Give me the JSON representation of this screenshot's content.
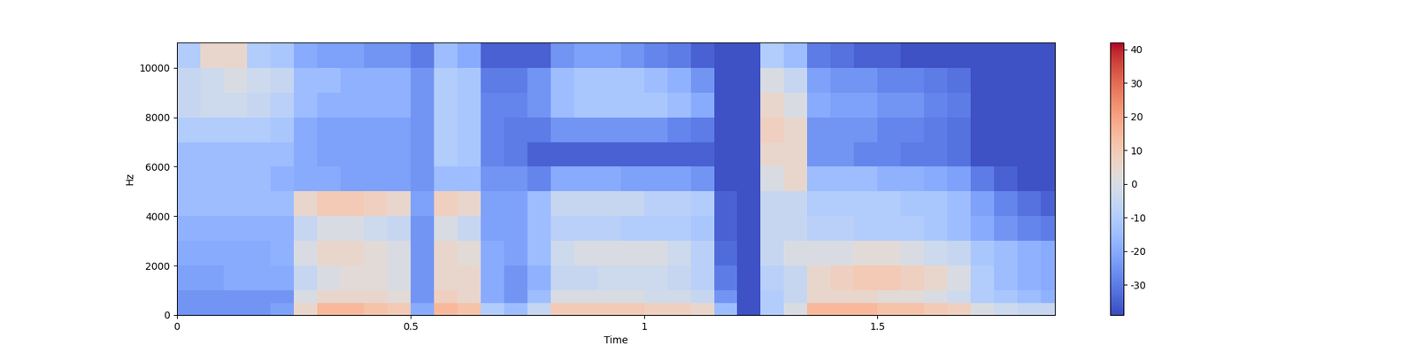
{
  "chart_data": {
    "type": "heatmap",
    "x_label": "Time",
    "y_label": "Hz",
    "xlim": [
      0,
      1.88
    ],
    "xticks": [
      0,
      0.5,
      1,
      1.5
    ],
    "ylim": [
      0,
      11025
    ],
    "yticks": [
      0,
      2000,
      4000,
      6000,
      8000,
      10000
    ],
    "x_edges": [
      0,
      0.05,
      0.1,
      0.15,
      0.2,
      0.25,
      0.3,
      0.35,
      0.4,
      0.45,
      0.5,
      0.55,
      0.6,
      0.65,
      0.7,
      0.75,
      0.8,
      0.85,
      0.9,
      0.95,
      1.0,
      1.05,
      1.1,
      1.15,
      1.2,
      1.25,
      1.3,
      1.35,
      1.4,
      1.45,
      1.5,
      1.55,
      1.6,
      1.65,
      1.7,
      1.75,
      1.8,
      1.85,
      1.9
    ],
    "y_edges": [
      0,
      500,
      1000,
      2000,
      3000,
      4000,
      5000,
      6000,
      7000,
      8000,
      9000,
      10000,
      11025
    ],
    "cells": [
      [
        -25,
        -25,
        -25,
        -25,
        -22,
        5,
        15,
        15,
        12,
        10,
        -20,
        15,
        12,
        -10,
        -15,
        -5,
        10,
        10,
        10,
        10,
        8,
        8,
        5,
        -15,
        -38,
        -10,
        0,
        15,
        15,
        15,
        12,
        12,
        10,
        8,
        0,
        -3,
        -5,
        -5
      ],
      [
        -25,
        -25,
        -25,
        -25,
        -25,
        0,
        5,
        5,
        5,
        3,
        -25,
        8,
        5,
        -20,
        -25,
        -15,
        0,
        0,
        0,
        0,
        -2,
        -2,
        -5,
        -25,
        -38,
        -10,
        -5,
        5,
        5,
        5,
        3,
        3,
        0,
        -3,
        -10,
        -12,
        -15,
        -18
      ],
      [
        -22,
        -22,
        -20,
        -20,
        -20,
        -5,
        0,
        3,
        3,
        0,
        -25,
        5,
        5,
        -20,
        -25,
        -18,
        -5,
        -5,
        -3,
        -3,
        -3,
        -5,
        -8,
        -30,
        -38,
        -8,
        -5,
        5,
        8,
        10,
        10,
        8,
        5,
        0,
        -10,
        -15,
        -18,
        -20
      ],
      [
        -20,
        -20,
        -20,
        -20,
        -18,
        0,
        5,
        5,
        3,
        0,
        -25,
        5,
        3,
        -20,
        -22,
        -15,
        -3,
        0,
        0,
        0,
        0,
        -3,
        -8,
        -33,
        -38,
        -5,
        0,
        0,
        0,
        3,
        3,
        0,
        -3,
        -5,
        -12,
        -15,
        -18,
        -20
      ],
      [
        -18,
        -18,
        -18,
        -18,
        -18,
        -5,
        0,
        0,
        -3,
        -5,
        -25,
        0,
        -5,
        -22,
        -22,
        -15,
        -8,
        -8,
        -8,
        -10,
        -10,
        -10,
        -12,
        -35,
        -38,
        -5,
        -5,
        -8,
        -8,
        -10,
        -10,
        -10,
        -12,
        -15,
        -20,
        -25,
        -28,
        -30
      ],
      [
        -15,
        -15,
        -15,
        -15,
        -15,
        5,
        10,
        10,
        8,
        5,
        -22,
        8,
        5,
        -22,
        -22,
        -15,
        -5,
        -5,
        -5,
        -5,
        -8,
        -8,
        -10,
        -35,
        -38,
        -5,
        -5,
        -10,
        -10,
        -10,
        -10,
        -12,
        -12,
        -15,
        -22,
        -28,
        -32,
        -35
      ],
      [
        -15,
        -15,
        -15,
        -15,
        -18,
        -20,
        -20,
        -22,
        -22,
        -22,
        -25,
        -15,
        -15,
        -25,
        -25,
        -28,
        -20,
        -20,
        -20,
        -22,
        -22,
        -22,
        -25,
        -38,
        -38,
        0,
        5,
        -15,
        -15,
        -15,
        -18,
        -18,
        -20,
        -22,
        -30,
        -35,
        -38,
        -38
      ],
      [
        -15,
        -15,
        -15,
        -15,
        -15,
        -20,
        -22,
        -22,
        -22,
        -22,
        -25,
        -10,
        -12,
        -28,
        -30,
        -35,
        -35,
        -35,
        -35,
        -35,
        -35,
        -35,
        -35,
        -38,
        -38,
        5,
        5,
        -25,
        -25,
        -28,
        -28,
        -30,
        -30,
        -32,
        -38,
        -38,
        -38,
        -38
      ],
      [
        -10,
        -10,
        -10,
        -10,
        -12,
        -20,
        -22,
        -22,
        -22,
        -22,
        -25,
        -10,
        -12,
        -28,
        -30,
        -30,
        -25,
        -25,
        -25,
        -25,
        -25,
        -28,
        -30,
        -38,
        -38,
        8,
        5,
        -25,
        -25,
        -25,
        -28,
        -28,
        -30,
        -32,
        -38,
        -38,
        -38,
        -38
      ],
      [
        -5,
        -3,
        -3,
        -5,
        -8,
        -15,
        -18,
        -18,
        -18,
        -18,
        -25,
        -10,
        -12,
        -28,
        -28,
        -25,
        -15,
        -12,
        -12,
        -12,
        -12,
        -15,
        -20,
        -38,
        -38,
        5,
        0,
        -20,
        -22,
        -22,
        -25,
        -25,
        -28,
        -30,
        -38,
        -38,
        -38,
        -38
      ],
      [
        -5,
        -3,
        0,
        -3,
        -5,
        -15,
        -15,
        -18,
        -18,
        -18,
        -25,
        -10,
        -12,
        -30,
        -30,
        -25,
        -15,
        -12,
        -12,
        -12,
        -15,
        -18,
        -25,
        -38,
        -38,
        0,
        -5,
        -22,
        -25,
        -25,
        -28,
        -28,
        -30,
        -32,
        -38,
        -38,
        -38,
        -38
      ],
      [
        -10,
        5,
        5,
        -10,
        -12,
        -20,
        -22,
        -22,
        -25,
        -25,
        -30,
        -15,
        -20,
        -35,
        -35,
        -35,
        -25,
        -22,
        -22,
        -25,
        -28,
        -30,
        -35,
        -38,
        -38,
        -10,
        -15,
        -30,
        -32,
        -35,
        -35,
        -38,
        -38,
        -38,
        -38,
        -38,
        -38,
        -38
      ]
    ],
    "color_lim": [
      -39,
      42
    ],
    "color_ticks": [
      -30,
      -20,
      -10,
      0,
      10,
      20,
      30,
      40
    ]
  }
}
